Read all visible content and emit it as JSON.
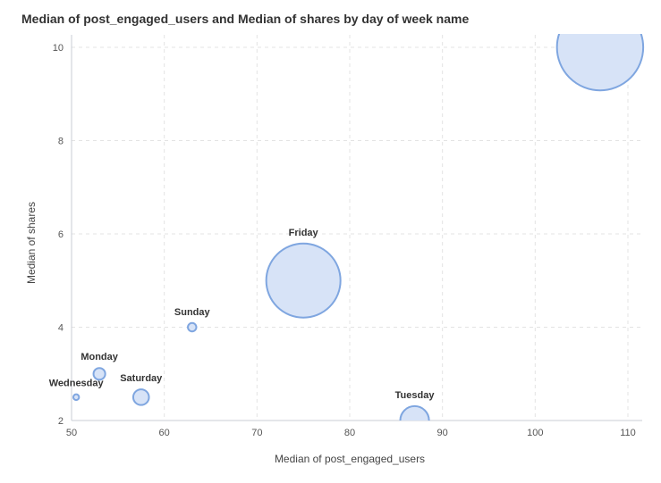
{
  "chart_data": {
    "type": "scatter",
    "title": "Median of post_engaged_users and Median of shares by day of week name",
    "xlabel": "Median of post_engaged_users",
    "ylabel": "Median of shares",
    "xlim": [
      50,
      110
    ],
    "ylim": [
      2,
      10
    ],
    "x_ticks": [
      50,
      60,
      70,
      80,
      90,
      100,
      110
    ],
    "y_ticks": [
      2,
      4,
      6,
      8,
      10
    ],
    "grid": true,
    "colors": {
      "bubble_fill": "#d7e3f7",
      "bubble_stroke": "#7fa6e0",
      "grid": "#e3e3e3",
      "axis": "#c8cdd6",
      "title": "#333333"
    },
    "points": [
      {
        "label": "Wednesday",
        "x": 50.5,
        "y": 2.5,
        "size": 0.3
      },
      {
        "label": "Monday",
        "x": 53,
        "y": 3,
        "size": 2.5
      },
      {
        "label": "Saturday",
        "x": 57.5,
        "y": 2.5,
        "size": 4.5
      },
      {
        "label": "Sunday",
        "x": 63,
        "y": 4,
        "size": 1.3
      },
      {
        "label": "Friday",
        "x": 75,
        "y": 5,
        "size": 100
      },
      {
        "label": "Tuesday",
        "x": 87,
        "y": 2,
        "size": 15
      },
      {
        "label": "",
        "x": 107,
        "y": 10,
        "size": 135
      }
    ]
  }
}
